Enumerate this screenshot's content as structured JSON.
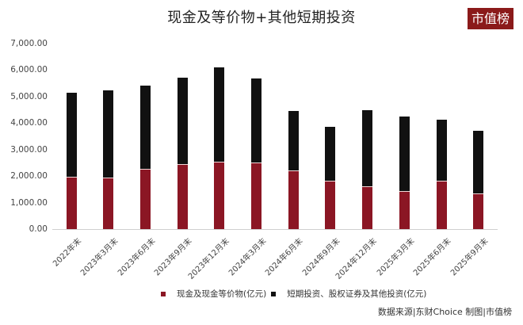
{
  "header": {
    "title": "现金及等价物+其他短期投资",
    "logo": "市值榜"
  },
  "colors": {
    "cash": "#8b1624",
    "short_term": "#111111",
    "logo_bg": "#8b1a1a"
  },
  "legend": {
    "items": [
      {
        "label": "现金及现金等价物(亿元)",
        "color": "#8b1624"
      },
      {
        "label": "短期投资、股权证券及其他投资(亿元)",
        "color": "#111111"
      }
    ]
  },
  "source": "数据来源|东财Choice  制图|市值榜",
  "chart_data": {
    "type": "bar",
    "stacked": true,
    "title": "现金及等价物+其他短期投资",
    "xlabel": "",
    "ylabel": "",
    "ylim": [
      0,
      7000
    ],
    "yticks": [
      "0.00",
      "1,000.00",
      "2,000.00",
      "3,000.00",
      "4,000.00",
      "5,000.00",
      "6,000.00",
      "7,000.00"
    ],
    "grid": false,
    "legend_position": "bottom",
    "categories": [
      "2022年末",
      "2023年3月末",
      "2023年6月末",
      "2023年9月末",
      "2023年12月末",
      "2024年3月末",
      "2024年6月末",
      "2024年9月末",
      "2024年12月末",
      "2025年3月末",
      "2025年6月末",
      "2025年9月末"
    ],
    "series": [
      {
        "name": "现金及现金等价物(亿元)",
        "values": [
          1960,
          1940,
          2270,
          2450,
          2540,
          2510,
          2210,
          1830,
          1620,
          1440,
          1830,
          1350
        ]
      },
      {
        "name": "短期投资、股权证券及其他投资(亿元)",
        "values": [
          3190,
          3300,
          3150,
          3270,
          3570,
          3180,
          2250,
          2030,
          2870,
          2810,
          2300,
          2360
        ]
      }
    ],
    "totals": [
      5150,
      5240,
      5420,
      5720,
      6110,
      5690,
      4460,
      3860,
      4490,
      4250,
      4130,
      3710
    ]
  }
}
